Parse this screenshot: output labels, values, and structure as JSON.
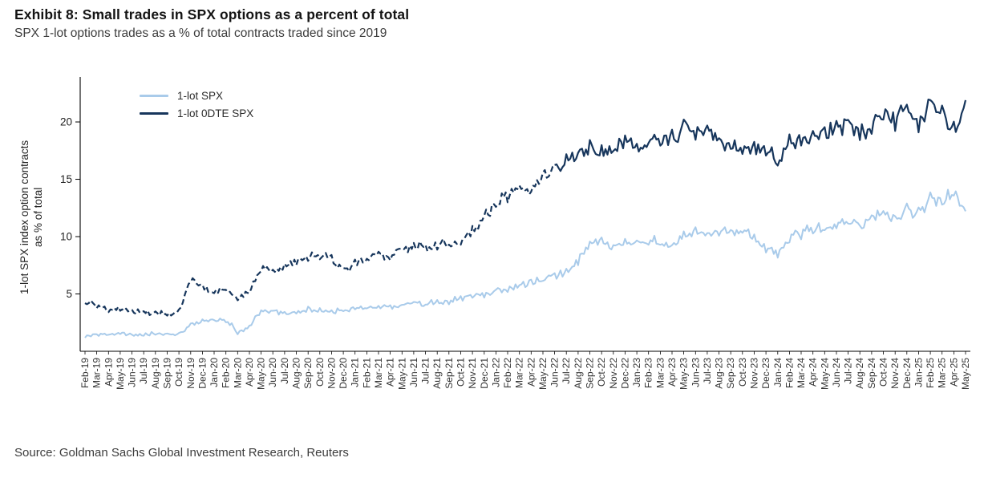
{
  "header": {
    "title": "Exhibit 8: Small trades in SPX options as a percent of total",
    "subtitle": "SPX 1-lot options trades as a % of total contracts traded since 2019"
  },
  "footer": {
    "source": "Source: Goldman Sachs Global Investment Research, Reuters"
  },
  "chart_data": {
    "type": "line",
    "title": "Exhibit 8: Small trades in SPX options as a percent of total",
    "xlabel": "",
    "ylabel": "1-lot SPX index option contracts\nas % of total",
    "ylim": [
      0,
      23.5
    ],
    "yticks": [
      5,
      10,
      15,
      20
    ],
    "grid": false,
    "legend_position": "top-left-inside",
    "categories": [
      "Feb-19",
      "Mar-19",
      "Apr-19",
      "May-19",
      "Jun-19",
      "Jul-19",
      "Aug-19",
      "Sep-19",
      "Oct-19",
      "Nov-19",
      "Dec-19",
      "Jan-20",
      "Feb-20",
      "Mar-20",
      "Apr-20",
      "May-20",
      "Jun-20",
      "Jul-20",
      "Aug-20",
      "Sep-20",
      "Oct-20",
      "Nov-20",
      "Dec-20",
      "Jan-21",
      "Feb-21",
      "Mar-21",
      "Apr-21",
      "May-21",
      "Jun-21",
      "Jul-21",
      "Aug-21",
      "Sep-21",
      "Oct-21",
      "Nov-21",
      "Dec-21",
      "Jan-22",
      "Feb-22",
      "Mar-22",
      "Apr-22",
      "May-22",
      "Jun-22",
      "Jul-22",
      "Aug-22",
      "Sep-22",
      "Oct-22",
      "Nov-22",
      "Dec-22",
      "Jan-23",
      "Feb-23",
      "Mar-23",
      "Apr-23",
      "May-23",
      "Jun-23",
      "Jul-23",
      "Aug-23",
      "Sep-23",
      "Oct-23",
      "Nov-23",
      "Dec-23",
      "Jan-24",
      "Feb-24",
      "Mar-24",
      "Apr-24",
      "May-24",
      "Jun-24",
      "Jul-24",
      "Aug-24",
      "Sep-24",
      "Oct-24",
      "Nov-24",
      "Dec-24",
      "Jan-25",
      "Feb-25",
      "Mar-25",
      "Apr-25",
      "May-25"
    ],
    "series": [
      {
        "name": "1-lot SPX",
        "color": "#a9cbea",
        "style": "solid",
        "values": [
          1.3,
          1.4,
          1.5,
          1.6,
          1.4,
          1.5,
          1.6,
          1.4,
          1.5,
          2.3,
          2.6,
          2.7,
          2.8,
          1.6,
          2.2,
          3.4,
          3.5,
          3.3,
          3.4,
          3.6,
          3.5,
          3.4,
          3.6,
          3.8,
          3.7,
          3.9,
          3.8,
          4.0,
          4.2,
          4.0,
          4.3,
          4.4,
          4.5,
          4.8,
          5.0,
          5.3,
          5.5,
          5.8,
          6.0,
          6.3,
          6.5,
          6.8,
          8.0,
          9.2,
          9.6,
          9.0,
          9.4,
          9.2,
          9.8,
          9.5,
          9.3,
          10.0,
          10.3,
          10.0,
          10.5,
          10.2,
          10.6,
          10.0,
          9.0,
          8.5,
          10.0,
          10.3,
          10.8,
          10.5,
          11.0,
          11.3,
          10.8,
          11.5,
          12.0,
          11.5,
          12.5,
          12.0,
          13.5,
          13.0,
          13.8,
          12.5
        ]
      },
      {
        "name": "1-lot 0DTE SPX",
        "color": "#17365c",
        "style": "dashed-then-solid",
        "dashed_until": "Jun-22",
        "values": [
          4.3,
          4.0,
          3.6,
          3.8,
          3.4,
          3.5,
          3.3,
          3.2,
          3.4,
          6.3,
          5.6,
          5.2,
          5.4,
          4.6,
          5.2,
          7.3,
          7.0,
          7.4,
          7.8,
          8.3,
          8.5,
          8.0,
          7.2,
          7.6,
          8.0,
          8.4,
          8.3,
          8.8,
          9.3,
          8.9,
          9.4,
          9.2,
          9.8,
          10.4,
          11.8,
          13.0,
          13.6,
          14.2,
          13.8,
          15.3,
          16.0,
          16.5,
          17.2,
          17.6,
          17.4,
          17.8,
          18.2,
          17.6,
          18.0,
          18.6,
          18.4,
          19.6,
          19.3,
          19.0,
          18.6,
          18.2,
          17.8,
          17.6,
          17.9,
          16.2,
          18.0,
          18.5,
          18.3,
          19.0,
          19.4,
          20.0,
          19.2,
          19.8,
          20.8,
          20.2,
          21.4,
          19.8,
          22.0,
          21.0,
          19.2,
          21.3
        ]
      }
    ]
  }
}
